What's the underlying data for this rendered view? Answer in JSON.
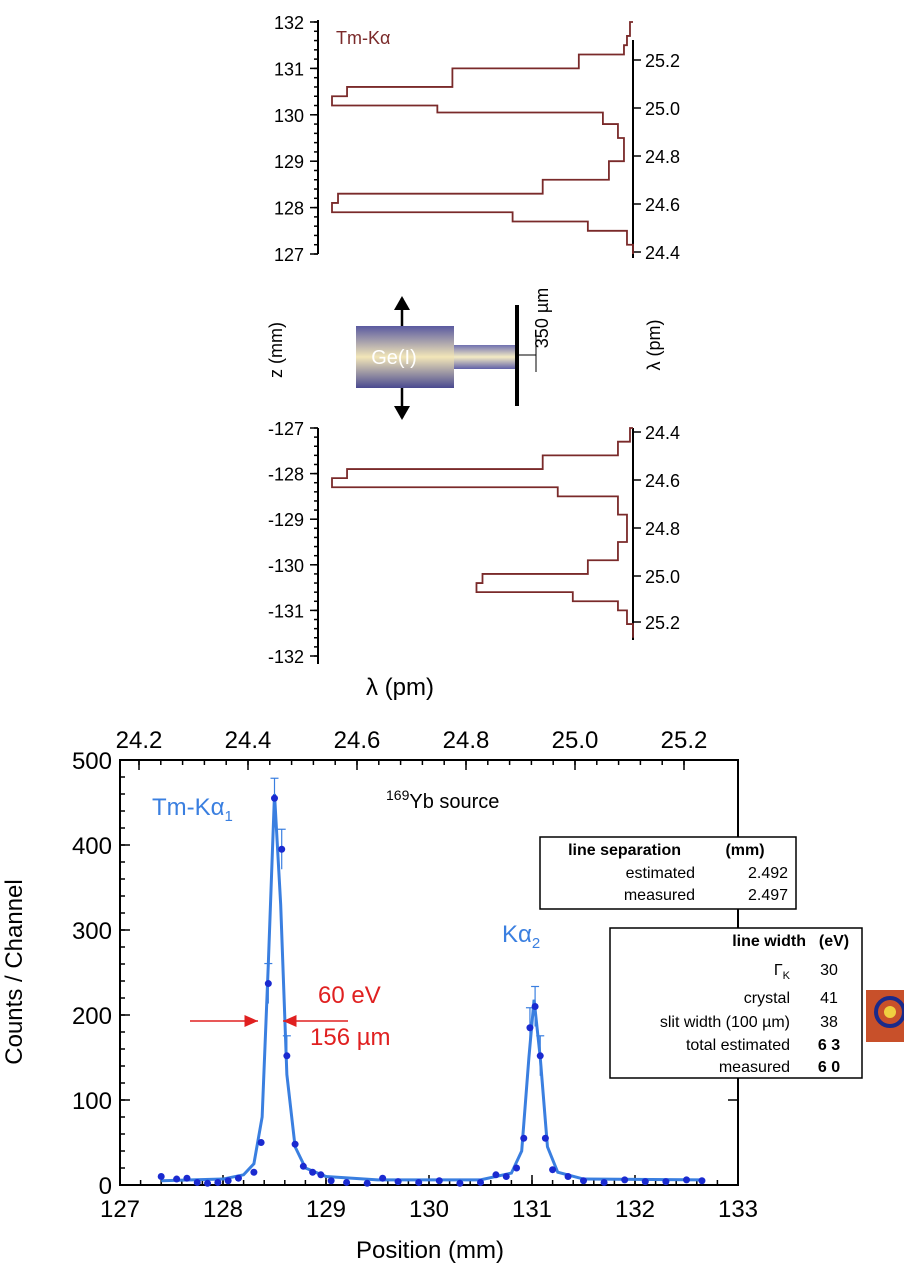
{
  "chart_data": [
    {
      "type": "step",
      "panel": "upper-histogram",
      "annotation": "Tm-Kα",
      "yticks_left": [
        "132",
        "131",
        "130",
        "129",
        "128",
        "127"
      ],
      "yticks_right": [
        "25.2",
        "25.0",
        "24.8",
        "24.6",
        "24.4"
      ],
      "ylim": [
        127,
        132
      ],
      "profile": [
        [
          132.0,
          0
        ],
        [
          131.7,
          0.01
        ],
        [
          131.5,
          0.02
        ],
        [
          131.3,
          0.03
        ],
        [
          131.0,
          0.18
        ],
        [
          130.6,
          0.6
        ],
        [
          130.4,
          0.95
        ],
        [
          130.2,
          1.0
        ],
        [
          130.05,
          0.65
        ],
        [
          129.8,
          0.1
        ],
        [
          129.5,
          0.05
        ],
        [
          129.0,
          0.03
        ],
        [
          128.6,
          0.08
        ],
        [
          128.3,
          0.3
        ],
        [
          128.1,
          0.98
        ],
        [
          127.9,
          1.0
        ],
        [
          127.7,
          0.4
        ],
        [
          127.5,
          0.15
        ],
        [
          127.2,
          0.02
        ],
        [
          127.0,
          0.0
        ]
      ]
    },
    {
      "type": "step",
      "panel": "lower-histogram",
      "yticks_left": [
        "-127",
        "-128",
        "-129",
        "-130",
        "-131",
        "-132"
      ],
      "yticks_right": [
        "24.4",
        "24.6",
        "24.8",
        "25.0",
        "25.2"
      ],
      "ylim": [
        -132,
        -127
      ],
      "profile": [
        [
          -127.0,
          0
        ],
        [
          -127.3,
          0.01
        ],
        [
          -127.6,
          0.05
        ],
        [
          -127.9,
          0.3
        ],
        [
          -128.1,
          0.95
        ],
        [
          -128.3,
          1.0
        ],
        [
          -128.5,
          0.25
        ],
        [
          -128.9,
          0.05
        ],
        [
          -129.5,
          0.02
        ],
        [
          -129.9,
          0.05
        ],
        [
          -130.2,
          0.15
        ],
        [
          -130.4,
          0.5
        ],
        [
          -130.6,
          0.52
        ],
        [
          -130.8,
          0.2
        ],
        [
          -131.0,
          0.05
        ],
        [
          -131.3,
          0.02
        ],
        [
          -131.6,
          0.0
        ]
      ]
    },
    {
      "type": "scatter+line",
      "panel": "spectrum",
      "source_label_sup": "169",
      "source_label": "Yb source",
      "x_top_ticks": [
        "24.2",
        "24.4",
        "24.6",
        "24.8",
        "25.0",
        "25.2"
      ],
      "x_bottom_ticks": [
        "127",
        "128",
        "129",
        "130",
        "131",
        "132",
        "133"
      ],
      "y_ticks": [
        "0",
        "100",
        "200",
        "300",
        "400",
        "500"
      ],
      "xlim": [
        127,
        133
      ],
      "ylim": [
        0,
        500
      ],
      "xlabel": "Position (mm)",
      "ylabel": "Counts / Channel",
      "points": [
        [
          127.4,
          10
        ],
        [
          127.55,
          7
        ],
        [
          127.65,
          8
        ],
        [
          127.75,
          3
        ],
        [
          127.85,
          2
        ],
        [
          127.95,
          3
        ],
        [
          128.05,
          5
        ],
        [
          128.15,
          8
        ],
        [
          128.3,
          15
        ],
        [
          128.37,
          50
        ],
        [
          128.44,
          237
        ],
        [
          128.5,
          455
        ],
        [
          128.57,
          395
        ],
        [
          128.62,
          152
        ],
        [
          128.7,
          48
        ],
        [
          128.78,
          22
        ],
        [
          128.87,
          15
        ],
        [
          128.95,
          12
        ],
        [
          129.05,
          5
        ],
        [
          129.2,
          3
        ],
        [
          129.4,
          2
        ],
        [
          129.55,
          8
        ],
        [
          129.7,
          4
        ],
        [
          129.9,
          3
        ],
        [
          130.1,
          5
        ],
        [
          130.3,
          2
        ],
        [
          130.5,
          3
        ],
        [
          130.65,
          12
        ],
        [
          130.75,
          10
        ],
        [
          130.85,
          20
        ],
        [
          130.92,
          55
        ],
        [
          130.98,
          185
        ],
        [
          131.03,
          210
        ],
        [
          131.08,
          152
        ],
        [
          131.13,
          55
        ],
        [
          131.2,
          18
        ],
        [
          131.35,
          10
        ],
        [
          131.5,
          5
        ],
        [
          131.7,
          3
        ],
        [
          131.9,
          6
        ],
        [
          132.1,
          4
        ],
        [
          132.3,
          4
        ],
        [
          132.5,
          6
        ],
        [
          132.65,
          5
        ]
      ],
      "fit_series": [
        [
          127.4,
          5
        ],
        [
          128.0,
          7
        ],
        [
          128.2,
          12
        ],
        [
          128.3,
          25
        ],
        [
          128.38,
          80
        ],
        [
          128.44,
          260
        ],
        [
          128.5,
          460
        ],
        [
          128.56,
          330
        ],
        [
          128.62,
          130
        ],
        [
          128.7,
          45
        ],
        [
          128.8,
          20
        ],
        [
          129.0,
          10
        ],
        [
          129.5,
          6
        ],
        [
          130.5,
          6
        ],
        [
          130.8,
          14
        ],
        [
          130.9,
          40
        ],
        [
          130.97,
          150
        ],
        [
          131.02,
          218
        ],
        [
          131.08,
          150
        ],
        [
          131.15,
          45
        ],
        [
          131.25,
          15
        ],
        [
          131.5,
          7
        ],
        [
          132.65,
          6
        ]
      ],
      "labels": {
        "ka1": "Tm-Kα",
        "ka1_sub": "1",
        "ka2": "Kα",
        "ka2_sub": "2",
        "width_ev": "60 eV",
        "width_um": "156  µm"
      }
    }
  ],
  "upper_ylabel_left": "z (mm)",
  "upper_ylabel_right": "λ (pm)",
  "middle_xlabel": "λ (pm)",
  "schematic": {
    "crystal_label": "Ge(I)",
    "slit_label": "350 µm"
  },
  "sep_table": {
    "header": "line  separation",
    "unit": "(mm)",
    "rows": [
      {
        "label": "estimated",
        "value": "2.492"
      },
      {
        "label": "measured",
        "value": "2.497"
      }
    ]
  },
  "width_table": {
    "header": "line width",
    "unit": "(eV)",
    "rows": [
      {
        "label": "Γ",
        "sub": "K",
        "value": "30"
      },
      {
        "label": "crystal",
        "value": "41"
      },
      {
        "label": "slit width (100 µm)",
        "value": "38"
      },
      {
        "label": "total estimated",
        "value": "6 3"
      },
      {
        "label": "measured",
        "value": "6 0"
      }
    ]
  },
  "colors": {
    "histogram": "#7a2a2a",
    "spectrum": "#3a7fe0",
    "arrows": "#e02020"
  }
}
